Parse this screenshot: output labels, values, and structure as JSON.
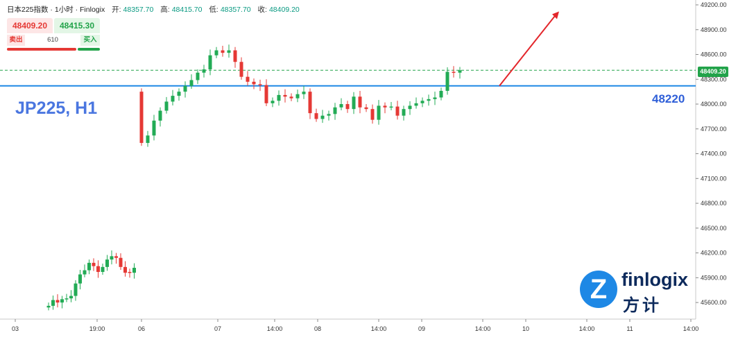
{
  "header": {
    "title": "日本225指数 · 1小时 · Finlogix",
    "open_label": "开:",
    "open_value": "48357.70",
    "high_label": "高:",
    "high_value": "48415.70",
    "low_label": "低:",
    "low_value": "48357.70",
    "close_label": "收:",
    "close_value": "48409.20"
  },
  "trade_panel": {
    "sell_price": "48409.20",
    "buy_price": "48415.30",
    "sell_label": "卖出",
    "buy_label": "买入",
    "quantity": "610"
  },
  "symbol_label": "JP225, H1",
  "level_label": "48220",
  "price_tag": "48409.20",
  "logo": {
    "name": "finlogix",
    "sub": "方计",
    "mark": "Z"
  },
  "colors": {
    "up": "#22ab55",
    "down": "#e53935",
    "level_line": "#1e88e5",
    "arrow": "#e3262b",
    "price_line": "#22a34a"
  },
  "chart_data": {
    "type": "candlestick",
    "title": "日本225指数 · 1小时 · Finlogix",
    "ylim": [
      45500,
      49200
    ],
    "y_ticks": [
      "49200.00",
      "48900.00",
      "48600.00",
      "48300.00",
      "48000.00",
      "47700.00",
      "47400.00",
      "47100.00",
      "46800.00",
      "46500.00",
      "46200.00",
      "45900.00",
      "45600.00"
    ],
    "x_ticks": [
      "03",
      "19:00",
      "06",
      "07",
      "14:00",
      "08",
      "14:00",
      "09",
      "14:00",
      "10",
      "14:00",
      "11",
      "14:00"
    ],
    "horizontal_level": 48220,
    "current_price": 48409.2,
    "arrow": {
      "direction": "up",
      "from_price": 48220,
      "to_price": 49120
    },
    "segment_1": {
      "open": [
        45540,
        45560,
        45630,
        45600,
        45640,
        45650,
        45680,
        45830,
        45940,
        45990,
        46080,
        46040,
        45970,
        46030,
        46120,
        46160,
        46140,
        46030,
        45970,
        45960
      ],
      "close": [
        45560,
        45630,
        45600,
        45640,
        45650,
        45680,
        45830,
        45940,
        45990,
        46080,
        46040,
        45970,
        46030,
        46120,
        46160,
        46140,
        46030,
        45960,
        45960,
        46020
      ]
    },
    "segment_2": {
      "open": [
        48150,
        47530,
        47620,
        47800,
        47920,
        48030,
        48100,
        48150,
        48220,
        48290,
        48380,
        48420,
        48590,
        48650,
        48620,
        48650,
        48510,
        48330,
        48270,
        48240,
        48230,
        48010,
        48040,
        48110,
        48090,
        48070,
        48120,
        48150,
        47890,
        47820,
        47860,
        47880,
        47960,
        48000,
        47940,
        48090,
        47960,
        47940,
        47810,
        47980,
        47960,
        47970,
        47860,
        47940,
        47980,
        48010,
        48040,
        48060,
        48080,
        48160,
        48390,
        48380
      ],
      "close": [
        47530,
        47620,
        47800,
        47920,
        48030,
        48100,
        48150,
        48220,
        48290,
        48380,
        48420,
        48590,
        48650,
        48620,
        48650,
        48510,
        48330,
        48270,
        48240,
        48230,
        48010,
        48040,
        48110,
        48090,
        48070,
        48120,
        48150,
        47890,
        47820,
        47860,
        47880,
        47960,
        48000,
        47940,
        48090,
        47960,
        47940,
        47810,
        47980,
        47960,
        47970,
        47860,
        47940,
        47980,
        48010,
        48040,
        48060,
        48080,
        48160,
        48390,
        48380,
        48409
      ]
    }
  }
}
